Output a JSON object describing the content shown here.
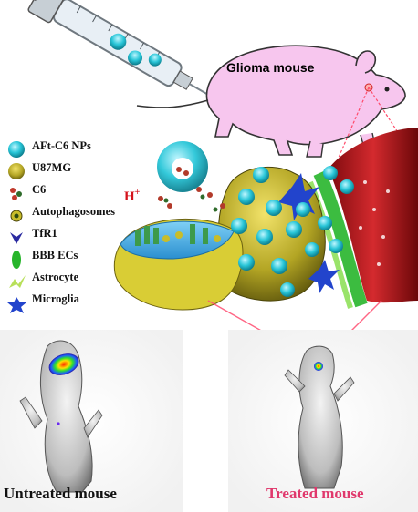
{
  "header": {
    "mouse_label": "Glioma mouse",
    "proton_label": "H",
    "proton_charge": "+"
  },
  "legend": [
    {
      "icon": "aft-c6-np-icon",
      "label": "AFt-C6 NPs",
      "color": "#29c6d8"
    },
    {
      "icon": "u87mg-cell-icon",
      "label": "U87MG",
      "color": "#a59a1f"
    },
    {
      "icon": "c6-drug-icon",
      "label": "C6",
      "color": "#c0392b"
    },
    {
      "icon": "autophagosome-icon",
      "label": "Autophagosomes",
      "color": "#8aa51a"
    },
    {
      "icon": "tfr1-receptor-icon",
      "label": "TfR1",
      "color": "#2a2aa0"
    },
    {
      "icon": "bbb-ec-icon",
      "label": "BBB ECs",
      "color": "#27b52b"
    },
    {
      "icon": "astrocyte-icon",
      "label": "Astrocyte",
      "color": "#b8e05a"
    },
    {
      "icon": "microglia-icon",
      "label": "Microglia",
      "color": "#2244cc"
    }
  ],
  "captions": {
    "untreated": "Untreated mouse",
    "treated": "Treated mouse"
  },
  "colors": {
    "untreated_caption": "#111111",
    "treated_caption": "#e0386c",
    "mouse_body": "#f7c6ee",
    "vessel": "#b5151a",
    "beam": "#ff4a6a"
  }
}
